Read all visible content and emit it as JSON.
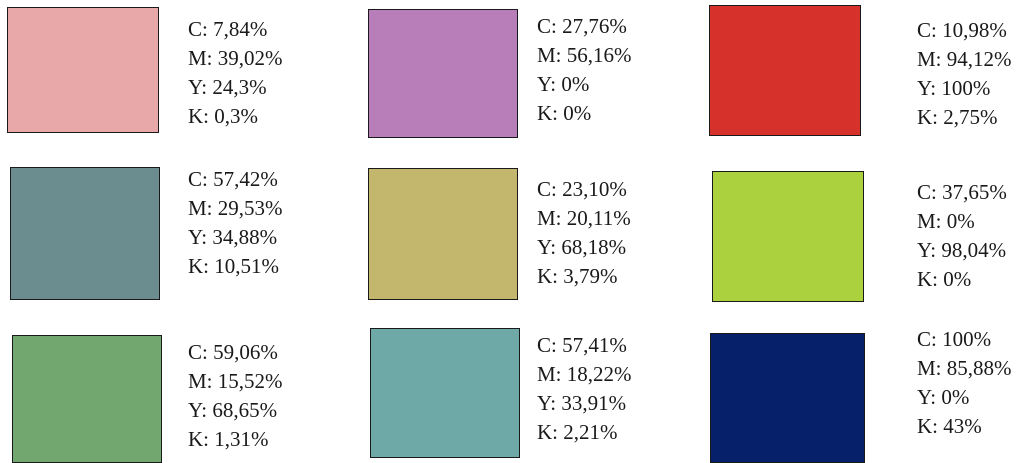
{
  "swatches": [
    {
      "color": "#e8a8aa",
      "cmyk": {
        "c": "C: 7,84%",
        "m": "M: 39,02%",
        "y": "Y: 24,3%",
        "k": "K: 0,3%"
      }
    },
    {
      "color": "#b77eb9",
      "cmyk": {
        "c": "C: 27,76%",
        "m": "M: 56,16%",
        "y": "Y: 0%",
        "k": "K: 0%"
      }
    },
    {
      "color": "#d6312a",
      "cmyk": {
        "c": "C: 10,98%",
        "m": "M: 94,12%",
        "y": "Y: 100%",
        "k": "K: 2,75%"
      }
    },
    {
      "color": "#6b8d8f",
      "cmyk": {
        "c": "C: 57,42%",
        "m": "M: 29,53%",
        "y": "Y: 34,88%",
        "k": "K: 10,51%"
      }
    },
    {
      "color": "#c2b76d",
      "cmyk": {
        "c": "C: 23,10%",
        "m": "M: 20,11%",
        "y": "Y: 68,18%",
        "k": "K: 3,79%"
      }
    },
    {
      "color": "#acd13e",
      "cmyk": {
        "c": "C: 37,65%",
        "m": "M: 0%",
        "y": "Y: 98,04%",
        "k": "K: 0%"
      }
    },
    {
      "color": "#72a770",
      "cmyk": {
        "c": "C: 59,06%",
        "m": "M: 15,52%",
        "y": "Y: 68,65%",
        "k": "K: 1,31%"
      }
    },
    {
      "color": "#6ea8a7",
      "cmyk": {
        "c": "C: 57,41%",
        "m": "M: 18,22%",
        "y": "Y: 33,91%",
        "k": "K: 2,21%"
      }
    },
    {
      "color": "#06216a",
      "cmyk": {
        "c": "C: 100%",
        "m": "M: 85,88%",
        "y": "Y: 0%",
        "k": "K: 43%"
      }
    }
  ]
}
